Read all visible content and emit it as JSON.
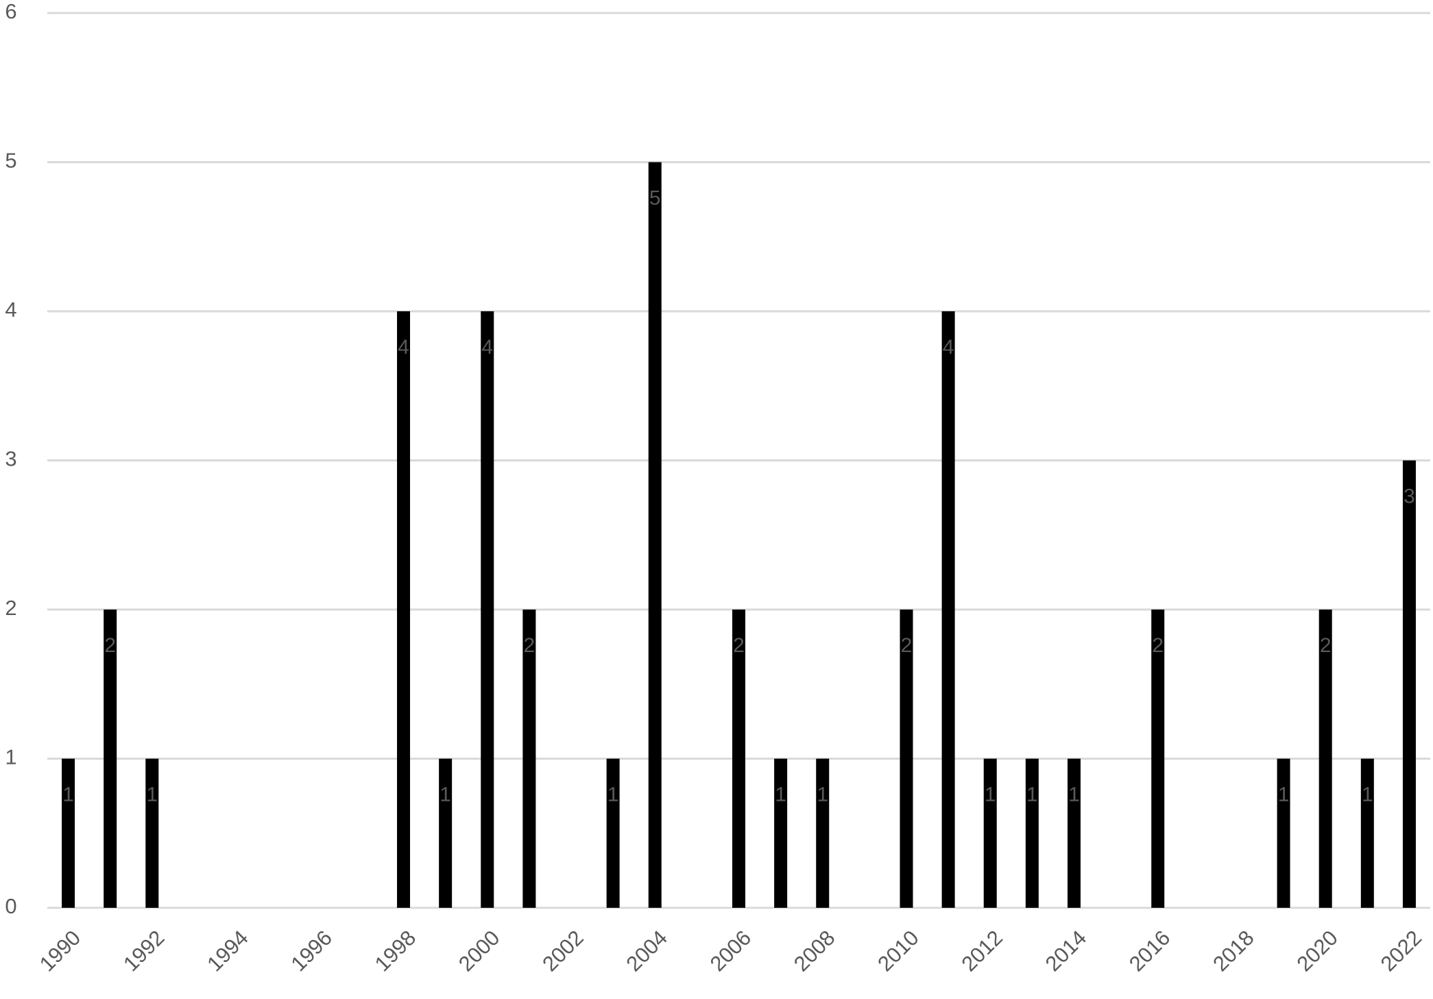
{
  "chart_data": {
    "type": "bar",
    "categories": [
      "1990",
      null,
      "1992",
      null,
      "1994",
      null,
      "1996",
      null,
      "1998",
      null,
      "2000",
      null,
      "2002",
      null,
      "2004",
      null,
      "2006",
      null,
      "2008",
      null,
      "2010",
      null,
      "2012",
      null,
      "2014",
      null,
      "2016",
      null,
      "2018",
      null,
      "2020",
      null,
      "2022"
    ],
    "values": [
      1,
      2,
      1,
      null,
      null,
      null,
      null,
      null,
      4,
      1,
      4,
      2,
      null,
      1,
      5,
      null,
      2,
      1,
      1,
      null,
      2,
      4,
      1,
      1,
      1,
      null,
      2,
      null,
      null,
      1,
      2,
      1,
      3
    ],
    "color": "#000000",
    "ylim": [
      0,
      6
    ],
    "yticks": [
      0,
      1,
      2,
      3,
      4,
      5,
      6
    ],
    "grid": true
  }
}
